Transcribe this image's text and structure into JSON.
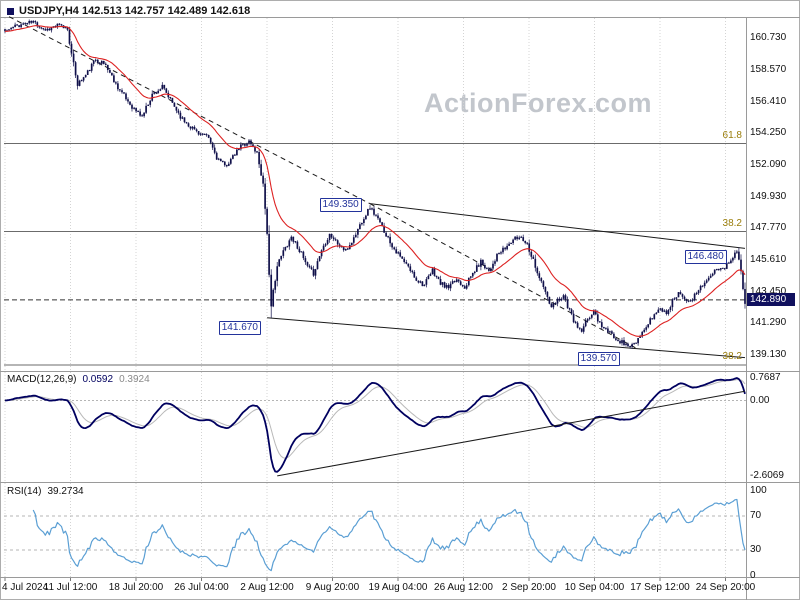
{
  "chart": {
    "title": "USDJPY,H4 142.513 142.757 142.489 142.618",
    "watermark": "ActionForex.com",
    "current_price": "142.890",
    "price_axis": [
      "160.730",
      "158.570",
      "156.410",
      "154.250",
      "152.090",
      "149.930",
      "147.770",
      "145.610",
      "143.450",
      "141.290",
      "139.130"
    ],
    "time_axis": [
      "4 Jul 2024",
      "11 Jul 12:00",
      "18 Jul 20:00",
      "26 Jul 04:00",
      "2 Aug 12:00",
      "9 Aug 20:00",
      "19 Aug 04:00",
      "26 Aug 12:00",
      "2 Sep 20:00",
      "10 Sep 04:00",
      "17 Sep 12:00",
      "24 Sep 20:00"
    ],
    "fib_levels": [
      {
        "label": "61.8",
        "price": 153.55
      },
      {
        "label": "38.2",
        "price": 147.55
      },
      {
        "label": "38.2",
        "price": 138.45
      }
    ],
    "levels": [
      {
        "label": "149.350",
        "price": 149.35,
        "bar": 156,
        "position": "center"
      },
      {
        "label": "141.670",
        "price": 141.67,
        "bar": 106,
        "position": "below"
      },
      {
        "label": "146.480",
        "price": 146.48,
        "bar": 337,
        "position": "below"
      },
      {
        "label": "139.570",
        "price": 139.57,
        "bar": 284,
        "position": "below"
      }
    ],
    "macd": {
      "title": "MACD(12,26,9)",
      "main_value": "0.0592",
      "signal_value": "0.3924",
      "axis": [
        "0.7687",
        "0.00",
        "-2.6069"
      ]
    },
    "rsi": {
      "title": "RSI(14)",
      "value": "39.2734",
      "axis": [
        "100",
        "70",
        "30",
        "0"
      ]
    }
  },
  "chart_data": {
    "type": "candlestick",
    "symbol": "USDJPY",
    "timeframe": "H4",
    "ohlc_current": {
      "open": 142.513,
      "high": 142.757,
      "low": 142.489,
      "close": 142.618
    },
    "price_range": [
      138.11,
      162.11
    ],
    "bars_total": 368,
    "ma_period": 21,
    "rsi": {
      "period": 14,
      "current": 39.2734
    },
    "macd_settings": {
      "fast": 12,
      "slow": 26,
      "signal": 9,
      "current_main": 0.0592,
      "current_signal": 0.3924,
      "axis_max": 0.7687,
      "axis_min": -2.6069
    },
    "keyframes": [
      [
        0,
        161.2
      ],
      [
        6,
        161.6
      ],
      [
        14,
        161.85
      ],
      [
        20,
        161.3
      ],
      [
        26,
        161.6
      ],
      [
        31,
        161.4
      ],
      [
        33,
        159.6
      ],
      [
        36,
        157.6
      ],
      [
        40,
        158.2
      ],
      [
        45,
        159.3
      ],
      [
        50,
        158.9
      ],
      [
        55,
        157.6
      ],
      [
        60,
        156.6
      ],
      [
        64,
        155.9
      ],
      [
        68,
        155.4
      ],
      [
        73,
        156.9
      ],
      [
        78,
        157.4
      ],
      [
        83,
        156.3
      ],
      [
        88,
        155.2
      ],
      [
        93,
        154.6
      ],
      [
        97,
        154.2
      ],
      [
        101,
        153.9
      ],
      [
        105,
        152.6
      ],
      [
        109,
        152.0
      ],
      [
        113,
        152.6
      ],
      [
        117,
        153.4
      ],
      [
        121,
        153.7
      ],
      [
        125,
        152.9
      ],
      [
        128,
        150.8
      ],
      [
        130,
        147.5
      ],
      [
        131,
        144.5
      ],
      [
        132,
        142.3
      ],
      [
        133,
        143.5
      ],
      [
        135,
        145.2
      ],
      [
        138,
        146.2
      ],
      [
        142,
        147.2
      ],
      [
        146,
        146.3
      ],
      [
        150,
        145.1
      ],
      [
        153,
        144.7
      ],
      [
        157,
        146.3
      ],
      [
        161,
        147.4
      ],
      [
        165,
        146.7
      ],
      [
        169,
        146.2
      ],
      [
        173,
        147.1
      ],
      [
        177,
        148.3
      ],
      [
        181,
        149.2
      ],
      [
        184,
        148.6
      ],
      [
        188,
        147.6
      ],
      [
        192,
        146.6
      ],
      [
        196,
        145.8
      ],
      [
        200,
        145.1
      ],
      [
        204,
        144.3
      ],
      [
        208,
        143.9
      ],
      [
        212,
        144.9
      ],
      [
        216,
        144.0
      ],
      [
        220,
        143.7
      ],
      [
        224,
        144.3
      ],
      [
        228,
        143.8
      ],
      [
        232,
        144.7
      ],
      [
        236,
        145.5
      ],
      [
        240,
        144.9
      ],
      [
        244,
        145.9
      ],
      [
        248,
        146.4
      ],
      [
        252,
        147.0
      ],
      [
        256,
        147.2
      ],
      [
        259,
        146.7
      ],
      [
        262,
        145.6
      ],
      [
        265,
        144.4
      ],
      [
        268,
        143.4
      ],
      [
        271,
        142.3
      ],
      [
        274,
        142.9
      ],
      [
        277,
        143.2
      ],
      [
        280,
        142.1
      ],
      [
        283,
        141.2
      ],
      [
        286,
        140.7
      ],
      [
        289,
        141.6
      ],
      [
        292,
        142.1
      ],
      [
        295,
        141.3
      ],
      [
        299,
        140.7
      ],
      [
        303,
        140.3
      ],
      [
        307,
        139.9
      ],
      [
        310,
        139.75
      ],
      [
        313,
        139.9
      ],
      [
        316,
        140.6
      ],
      [
        319,
        141.3
      ],
      [
        322,
        141.9
      ],
      [
        325,
        142.3
      ],
      [
        328,
        142.0
      ],
      [
        331,
        142.8
      ],
      [
        334,
        143.4
      ],
      [
        337,
        143.1
      ],
      [
        340,
        142.7
      ],
      [
        343,
        143.4
      ],
      [
        346,
        144.0
      ],
      [
        349,
        144.3
      ],
      [
        352,
        144.8
      ],
      [
        355,
        145.2
      ],
      [
        357,
        145.1
      ],
      [
        359,
        145.5
      ],
      [
        361,
        145.9
      ],
      [
        363,
        146.1
      ],
      [
        364,
        145.8
      ],
      [
        365,
        144.9
      ],
      [
        366,
        143.8
      ],
      [
        367,
        142.62
      ]
    ],
    "extremes": [
      {
        "bar": 14,
        "type": "high",
        "price": 161.95
      },
      {
        "bar": 132,
        "type": "low",
        "price": 141.67
      },
      {
        "bar": 181,
        "type": "high",
        "price": 149.35
      },
      {
        "bar": 310,
        "type": "low",
        "price": 139.57
      },
      {
        "bar": 363,
        "type": "high",
        "price": 146.3
      }
    ],
    "trendlines": [
      {
        "style": "dashed",
        "from": [
          2,
          162.2
        ],
        "to": [
          181,
          149.45
        ]
      },
      {
        "style": "dashed",
        "from": [
          181,
          149.45
        ],
        "to": [
          313,
          139.6
        ]
      },
      {
        "style": "solid",
        "from": [
          181,
          149.45
        ],
        "to": [
          367,
          146.4
        ]
      },
      {
        "style": "solid",
        "from": [
          130,
          141.67
        ],
        "to": [
          367,
          138.95
        ]
      }
    ],
    "macd_trendline": {
      "from": [
        135,
        -2.6
      ],
      "to": [
        367,
        0.32
      ]
    },
    "colors": {
      "grid": "#d4d4d4",
      "frame": "#9a9a9a",
      "fib_line": "#6b6b6b",
      "trendline": "#1a1a1a",
      "dashed_level": "#333333",
      "candle": "#10104a",
      "ma": "#dd2222",
      "macd_main": "#00005f",
      "macd_signal": "#b9b9b9",
      "rsi": "#5b9fd4",
      "level_accent": "#23339b",
      "badge_bg": "#10105e",
      "fib_text": "#9a7d0a",
      "watermark": "#c2c6cc"
    }
  }
}
